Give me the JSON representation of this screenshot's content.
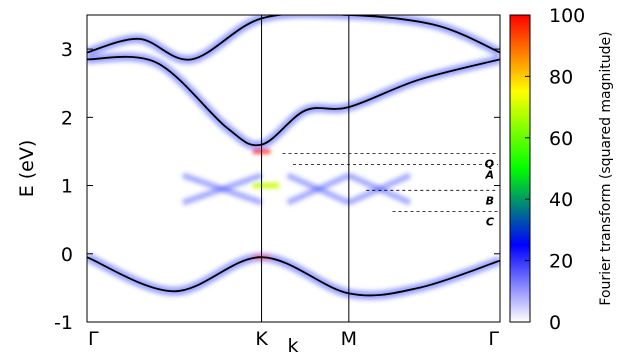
{
  "chart_data": {
    "type": "heatmap",
    "ylabel": "E (eV)",
    "xlabel": "k",
    "xticks": [
      "Γ",
      "K",
      "M",
      "Γ"
    ],
    "x_positions": [
      0,
      1,
      1.5,
      2.366
    ],
    "yticks": [
      -1,
      0,
      1,
      2,
      3
    ],
    "ylim": [
      -1,
      3.5
    ],
    "colorbar": {
      "label": "Fourier transform (squared magnitude)",
      "ticks": [
        0,
        20,
        40,
        60,
        80,
        100
      ],
      "range": [
        0,
        100
      ],
      "colors": [
        "#ffffff",
        "#0000ff",
        "#00ff00",
        "#ffff00",
        "#ff0000"
      ]
    },
    "levels": [
      {
        "label": "Q",
        "energy": 1.47
      },
      {
        "label": "A",
        "energy": 1.31
      },
      {
        "label": "B",
        "energy": 0.93
      },
      {
        "label": "C",
        "energy": 0.62
      }
    ],
    "bands": [
      {
        "x": [
          0,
          0.3,
          0.6,
          1.0,
          1.5,
          2.0,
          2.366
        ],
        "y": [
          2.95,
          3.15,
          2.85,
          3.45,
          3.5,
          3.35,
          2.95
        ]
      },
      {
        "x": [
          0,
          0.4,
          0.8,
          1.0,
          1.25,
          1.5,
          1.9,
          2.366
        ],
        "y": [
          2.85,
          2.8,
          1.85,
          1.6,
          2.1,
          2.15,
          2.55,
          2.85
        ]
      },
      {
        "x": [
          0,
          0.5,
          1.0,
          1.5,
          1.9,
          2.366
        ],
        "y": [
          -0.05,
          -0.55,
          -0.05,
          -0.58,
          -0.5,
          -0.1
        ]
      }
    ]
  }
}
